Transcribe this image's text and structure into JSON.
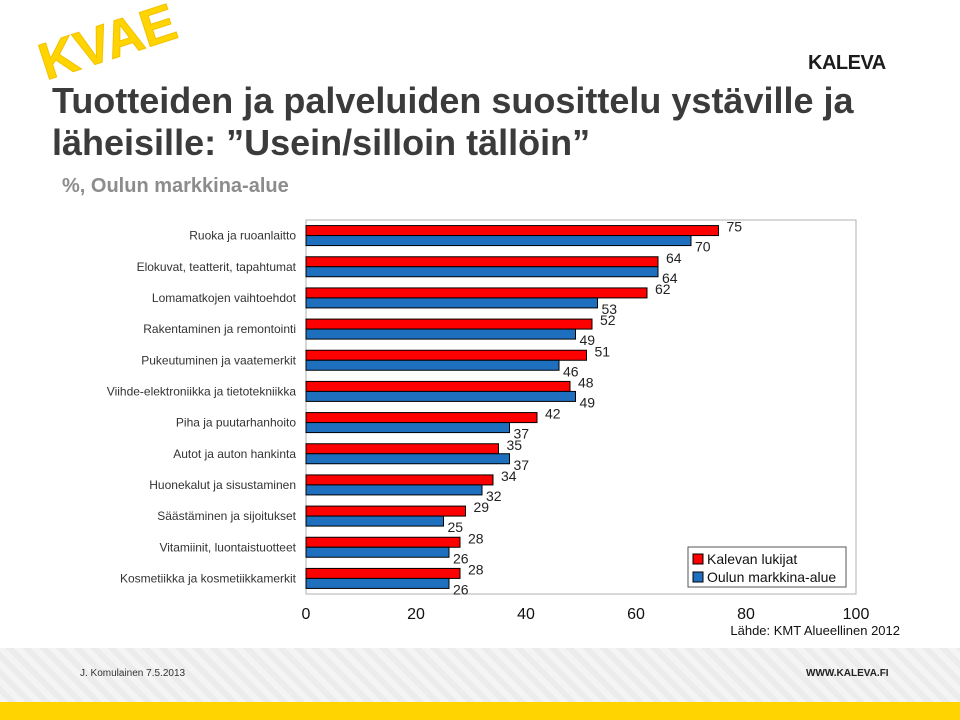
{
  "header": {
    "logo_text": "KVAE",
    "brand": "KALEVA",
    "title": "Tuotteiden ja palveluiden suosittelu ystäville ja läheisille: ”Usein/silloin tällöin”",
    "subtitle": "%, Oulun markkina-alue"
  },
  "colors": {
    "series1": "#ff0000",
    "series2": "#1f6fbf",
    "logo": "#ffd400"
  },
  "chart_data": {
    "type": "bar",
    "orientation": "horizontal",
    "categories": [
      "Ruoka ja ruoanlaitto",
      "Elokuvat, teatterit, tapahtumat",
      "Lomamatkojen vaihtoehdot",
      "Rakentaminen ja remontointi",
      "Pukeutuminen ja vaatemerkit",
      "Viihde-elektroniikka ja tietotekniikka",
      "Piha ja puutarhanhoito",
      "Autot ja auton hankinta",
      "Huonekalut ja sisustaminen",
      "Säästäminen ja sijoitukset",
      "Vitamiinit, luontaistuotteet",
      "Kosmetiikka ja kosmetiikkamerkit"
    ],
    "series": [
      {
        "name": "Kalevan lukijat",
        "values": [
          75,
          64,
          62,
          52,
          51,
          48,
          42,
          35,
          34,
          29,
          28,
          28
        ]
      },
      {
        "name": "Oulun markkina-alue",
        "values": [
          70,
          64,
          53,
          49,
          46,
          49,
          37,
          37,
          32,
          25,
          26,
          26
        ]
      }
    ],
    "xlim": [
      0,
      100
    ],
    "xticks": [
      "0",
      "20",
      "40",
      "60",
      "80",
      "100"
    ],
    "legend_position": "right",
    "source": "Lähde: KMT Alueellinen 2012"
  },
  "footer": {
    "author": "J. Komulainen 7.5.2013",
    "url": "WWW.KALEVA.FI"
  }
}
